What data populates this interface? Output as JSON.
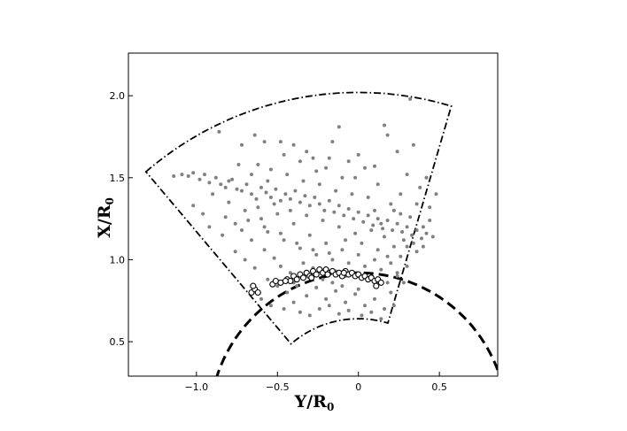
{
  "chart_data": {
    "type": "scatter",
    "xlabel": "Y/R",
    "xlabel_sub": "0",
    "ylabel": "X/R",
    "ylabel_sub": "0",
    "xlim": [
      -1.42,
      0.86
    ],
    "ylim": [
      0.29,
      2.26
    ],
    "xticks": [
      -1.0,
      -0.5,
      0.0,
      0.5
    ],
    "xtick_labels": [
      "−1.0",
      "−0.5",
      "0",
      "0.5"
    ],
    "yticks": [
      0.5,
      1.0,
      1.5,
      2.0
    ],
    "ytick_labels": [
      "0.5",
      "1.0",
      "1.5",
      "2.0"
    ],
    "grid": false,
    "series": [
      {
        "style": "filled-grey-dots",
        "color": "#808080",
        "points": [
          [
            -1.14,
            1.51
          ],
          [
            -1.09,
            1.52
          ],
          [
            -1.05,
            1.51
          ],
          [
            -1.02,
            1.53
          ],
          [
            -0.98,
            1.49
          ],
          [
            -0.95,
            1.52
          ],
          [
            -0.92,
            1.47
          ],
          [
            -0.88,
            1.5
          ],
          [
            -0.85,
            1.46
          ],
          [
            -0.82,
            1.44
          ],
          [
            -0.78,
            1.49
          ],
          [
            -0.75,
            1.43
          ],
          [
            -0.72,
            1.42
          ],
          [
            -0.69,
            1.46
          ],
          [
            -0.66,
            1.4
          ],
          [
            -0.63,
            1.37
          ],
          [
            -0.6,
            1.44
          ],
          [
            -0.57,
            1.41
          ],
          [
            -0.54,
            1.38
          ],
          [
            -0.51,
            1.43
          ],
          [
            -0.48,
            1.36
          ],
          [
            -0.45,
            1.4
          ],
          [
            -0.42,
            1.37
          ],
          [
            -0.39,
            1.42
          ],
          [
            -0.36,
            1.35
          ],
          [
            -0.33,
            1.39
          ],
          [
            -0.3,
            1.33
          ],
          [
            -0.27,
            1.38
          ],
          [
            -0.24,
            1.34
          ],
          [
            -0.21,
            1.3
          ],
          [
            -0.18,
            1.36
          ],
          [
            -0.15,
            1.29
          ],
          [
            -0.12,
            1.33
          ],
          [
            -0.09,
            1.27
          ],
          [
            -0.06,
            1.31
          ],
          [
            -0.03,
            1.25
          ],
          [
            0.0,
            1.29
          ],
          [
            0.03,
            1.23
          ],
          [
            0.06,
            1.27
          ],
          [
            0.09,
            1.21
          ],
          [
            0.12,
            1.25
          ],
          [
            0.15,
            1.19
          ],
          [
            0.18,
            1.24
          ],
          [
            0.21,
            1.18
          ],
          [
            0.24,
            1.22
          ],
          [
            0.27,
            1.17
          ],
          [
            0.3,
            1.2
          ],
          [
            0.33,
            1.15
          ],
          [
            0.36,
            1.18
          ],
          [
            0.39,
            1.13
          ],
          [
            0.42,
            1.16
          ],
          [
            -0.86,
            1.78
          ],
          [
            -0.72,
            1.7
          ],
          [
            -0.64,
            1.76
          ],
          [
            -0.58,
            1.72
          ],
          [
            -0.48,
            1.72
          ],
          [
            -0.4,
            1.7
          ],
          [
            -0.32,
            1.66
          ],
          [
            -0.28,
            1.62
          ],
          [
            -0.16,
            1.72
          ],
          [
            -0.12,
            1.81
          ],
          [
            -0.06,
            1.6
          ],
          [
            0.0,
            1.64
          ],
          [
            0.1,
            1.57
          ],
          [
            0.16,
            1.82
          ],
          [
            0.24,
            1.66
          ],
          [
            0.3,
            1.52
          ],
          [
            0.34,
            1.7
          ],
          [
            0.32,
            1.98
          ],
          [
            0.38,
            1.44
          ],
          [
            0.44,
            1.32
          ],
          [
            0.42,
            1.5
          ],
          [
            0.48,
            1.4
          ],
          [
            0.18,
            1.76
          ],
          [
            -0.2,
            1.56
          ],
          [
            -0.62,
            1.58
          ],
          [
            -0.9,
            1.4
          ],
          [
            -0.8,
            1.35
          ],
          [
            -0.7,
            1.3
          ],
          [
            -0.76,
            1.22
          ],
          [
            -0.6,
            1.25
          ],
          [
            -0.5,
            1.28
          ],
          [
            -0.56,
            1.17
          ],
          [
            -0.4,
            1.22
          ],
          [
            -0.46,
            1.12
          ],
          [
            -0.3,
            1.15
          ],
          [
            -0.36,
            1.07
          ],
          [
            -0.2,
            1.1
          ],
          [
            -0.26,
            1.03
          ],
          [
            -0.1,
            1.06
          ],
          [
            -0.16,
            1.0
          ],
          [
            0.0,
            1.03
          ],
          [
            -0.06,
            0.98
          ],
          [
            0.1,
            1.0
          ],
          [
            0.04,
            0.96
          ],
          [
            0.2,
            0.98
          ],
          [
            0.14,
            0.94
          ],
          [
            0.3,
            0.96
          ],
          [
            0.24,
            0.92
          ],
          [
            0.36,
            1.05
          ],
          [
            0.4,
            1.08
          ],
          [
            0.34,
            1.1
          ],
          [
            0.28,
            1.12
          ],
          [
            0.22,
            1.08
          ],
          [
            0.26,
            1.02
          ],
          [
            -0.66,
            1.12
          ],
          [
            -0.58,
            1.06
          ],
          [
            -0.52,
            1.01
          ],
          [
            -0.48,
            0.96
          ],
          [
            -0.42,
            0.92
          ],
          [
            -0.34,
            0.98
          ],
          [
            -0.28,
            0.95
          ],
          [
            -0.22,
            0.91
          ],
          [
            -0.14,
            0.93
          ],
          [
            -0.08,
            0.9
          ],
          [
            0.06,
            0.88
          ],
          [
            0.12,
            0.87
          ],
          [
            0.18,
            0.86
          ],
          [
            -0.56,
            0.88
          ],
          [
            -0.5,
            0.84
          ],
          [
            -0.44,
            0.8
          ],
          [
            -0.38,
            0.84
          ],
          [
            -0.32,
            0.78
          ],
          [
            -0.26,
            0.83
          ],
          [
            -0.2,
            0.76
          ],
          [
            -0.14,
            0.81
          ],
          [
            -0.08,
            0.74
          ],
          [
            -0.02,
            0.79
          ],
          [
            0.04,
            0.72
          ],
          [
            0.1,
            0.76
          ],
          [
            0.16,
            0.7
          ],
          [
            -0.46,
            0.7
          ],
          [
            -0.36,
            0.68
          ],
          [
            -0.24,
            0.7
          ],
          [
            -0.12,
            0.67
          ],
          [
            0.02,
            0.66
          ],
          [
            0.14,
            0.64
          ],
          [
            0.2,
            0.8
          ],
          [
            0.22,
            0.72
          ],
          [
            -0.6,
            0.76
          ],
          [
            -0.54,
            0.72
          ],
          [
            -0.4,
            0.74
          ],
          [
            -0.3,
            0.66
          ],
          [
            -0.18,
            0.72
          ],
          [
            -0.06,
            0.69
          ],
          [
            0.08,
            0.68
          ],
          [
            -0.7,
            1.0
          ],
          [
            -0.64,
            0.95
          ],
          [
            -0.76,
            1.05
          ],
          [
            -0.84,
            1.15
          ],
          [
            -0.96,
            1.28
          ],
          [
            -0.92,
            1.2
          ],
          [
            -1.02,
            1.33
          ],
          [
            -0.34,
            1.48
          ],
          [
            -0.24,
            1.46
          ],
          [
            -0.14,
            1.42
          ],
          [
            -0.04,
            1.4
          ],
          [
            0.06,
            1.38
          ],
          [
            -0.44,
            1.52
          ],
          [
            -0.54,
            1.55
          ],
          [
            -0.02,
            1.5
          ],
          [
            0.12,
            1.46
          ],
          [
            0.2,
            1.34
          ],
          [
            0.26,
            1.28
          ],
          [
            0.32,
            1.26
          ],
          [
            0.36,
            1.34
          ],
          [
            0.44,
            1.24
          ],
          [
            0.4,
            1.2
          ],
          [
            0.46,
            1.14
          ],
          [
            0.3,
            1.08
          ],
          [
            0.16,
            1.14
          ],
          [
            0.08,
            1.18
          ],
          [
            -0.02,
            1.16
          ],
          [
            -0.12,
            1.2
          ],
          [
            -0.22,
            1.24
          ],
          [
            -0.32,
            1.27
          ],
          [
            -0.42,
            1.3
          ],
          [
            -0.52,
            1.34
          ],
          [
            -0.62,
            1.32
          ],
          [
            -0.72,
            1.18
          ],
          [
            -0.82,
            1.26
          ],
          [
            -0.28,
            1.06
          ],
          [
            -0.18,
            1.04
          ],
          [
            -0.08,
            1.12
          ],
          [
            0.02,
            1.1
          ],
          [
            0.12,
            1.06
          ],
          [
            0.18,
            1.02
          ],
          [
            -0.38,
            1.1
          ],
          [
            -0.48,
            1.16
          ],
          [
            -0.58,
            1.2
          ],
          [
            -0.68,
            1.24
          ],
          [
            0.24,
            0.9
          ],
          [
            0.28,
            0.86
          ],
          [
            -0.16,
            0.86
          ],
          [
            -0.1,
            0.84
          ],
          [
            0.0,
            0.82
          ],
          [
            -0.22,
            0.88
          ],
          [
            -0.3,
            0.9
          ],
          [
            -0.4,
            0.86
          ],
          [
            0.26,
            1.4
          ],
          [
            0.22,
            1.3
          ],
          [
            0.14,
            1.22
          ],
          [
            -0.1,
            1.5
          ],
          [
            -0.18,
            1.62
          ],
          [
            -0.26,
            1.54
          ],
          [
            -0.36,
            1.6
          ],
          [
            -0.46,
            1.64
          ],
          [
            -0.56,
            1.48
          ],
          [
            -0.66,
            1.52
          ],
          [
            -0.74,
            1.58
          ],
          [
            -0.8,
            1.48
          ],
          [
            0.04,
            1.56
          ],
          [
            0.1,
            1.3
          ]
        ]
      },
      {
        "style": "open-black-circles",
        "color": "#000000",
        "points": [
          [
            -0.66,
            0.8
          ],
          [
            -0.64,
            0.82
          ],
          [
            -0.62,
            0.8
          ],
          [
            -0.65,
            0.84
          ],
          [
            -0.53,
            0.85
          ],
          [
            -0.51,
            0.87
          ],
          [
            -0.48,
            0.86
          ],
          [
            -0.44,
            0.88
          ],
          [
            -0.42,
            0.87
          ],
          [
            -0.4,
            0.9
          ],
          [
            -0.38,
            0.88
          ],
          [
            -0.36,
            0.91
          ],
          [
            -0.34,
            0.89
          ],
          [
            -0.32,
            0.92
          ],
          [
            -0.3,
            0.9
          ],
          [
            -0.28,
            0.93
          ],
          [
            -0.26,
            0.91
          ],
          [
            -0.24,
            0.94
          ],
          [
            -0.22,
            0.92
          ],
          [
            -0.2,
            0.94
          ],
          [
            -0.18,
            0.92
          ],
          [
            -0.16,
            0.93
          ],
          [
            -0.14,
            0.91
          ],
          [
            -0.12,
            0.92
          ],
          [
            -0.1,
            0.9
          ],
          [
            -0.08,
            0.93
          ],
          [
            -0.06,
            0.91
          ],
          [
            -0.04,
            0.92
          ],
          [
            -0.02,
            0.9
          ],
          [
            0.0,
            0.91
          ],
          [
            0.02,
            0.89
          ],
          [
            0.04,
            0.9
          ],
          [
            0.06,
            0.88
          ],
          [
            0.08,
            0.89
          ],
          [
            0.1,
            0.87
          ],
          [
            0.12,
            0.88
          ],
          [
            0.14,
            0.86
          ],
          [
            0.11,
            0.84
          ],
          [
            -0.29,
            0.89
          ],
          [
            -0.19,
            0.91
          ],
          [
            -0.09,
            0.92
          ],
          [
            -0.45,
            0.87
          ]
        ]
      }
    ],
    "boundaries": [
      {
        "style": "dash-dot",
        "shape": "annular-sector",
        "center": [
          0.0,
          0.0
        ],
        "outer_radius": 2.02,
        "inner_radius": 0.64,
        "angle_start_deg": 16.5,
        "angle_end_deg": -40.5
      },
      {
        "style": "dashed",
        "shape": "circle-arc",
        "center": [
          0.0,
          0.0
        ],
        "radius": 0.92
      }
    ]
  }
}
